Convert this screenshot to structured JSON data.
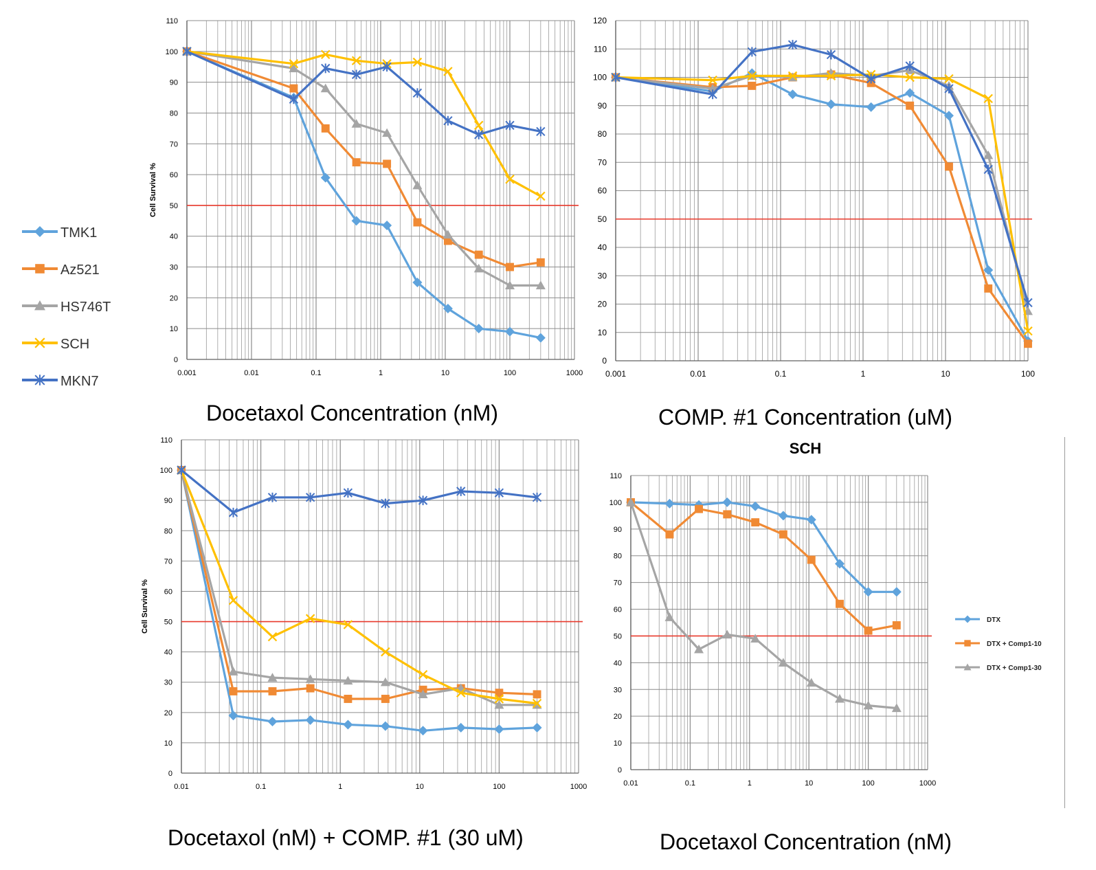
{
  "chart_data": [
    {
      "type": "line",
      "xscale": "log",
      "xlim": [
        0.001,
        1000
      ],
      "ylim": [
        0,
        110
      ],
      "ystep": 10,
      "xticks": [
        "0.001",
        "0.01",
        "0.1",
        "1",
        "10",
        "100",
        "1000"
      ],
      "ylabel": "Cell Survival %",
      "xlabel": "Docetaxol Concentration (nM)",
      "threshold": 50,
      "series": [
        {
          "name": "TMK1",
          "color": "#5fa3dc",
          "marker": "diamond",
          "x": [
            0.001,
            0.045,
            0.14,
            0.42,
            1.25,
            3.7,
            11,
            33,
            100,
            300
          ],
          "y": [
            100,
            85,
            59,
            45,
            43.5,
            25,
            16.5,
            10,
            9,
            7
          ]
        },
        {
          "name": "Az521",
          "color": "#f08a34",
          "marker": "square",
          "x": [
            0.001,
            0.045,
            0.14,
            0.42,
            1.25,
            3.7,
            11,
            33,
            100,
            300
          ],
          "y": [
            100,
            88,
            75,
            64,
            63.5,
            44.5,
            38.5,
            34,
            30,
            31.5
          ]
        },
        {
          "name": "HS746T",
          "color": "#a5a5a5",
          "marker": "triangle",
          "x": [
            0.001,
            0.045,
            0.14,
            0.42,
            1.25,
            3.7,
            11,
            33,
            100,
            300
          ],
          "y": [
            100,
            94.5,
            88,
            76.5,
            73.5,
            56.5,
            40.5,
            29.5,
            24,
            24
          ]
        },
        {
          "name": "SCH",
          "color": "#ffc000",
          "marker": "x",
          "x": [
            0.001,
            0.045,
            0.14,
            0.42,
            1.25,
            3.7,
            11,
            33,
            100,
            300
          ],
          "y": [
            100,
            96,
            99,
            97,
            96,
            96.5,
            93.5,
            76,
            58.5,
            53
          ]
        },
        {
          "name": "MKN7",
          "color": "#4472c4",
          "marker": "star",
          "x": [
            0.001,
            0.045,
            0.14,
            0.42,
            1.25,
            3.7,
            11,
            33,
            100,
            300
          ],
          "y": [
            100,
            84.5,
            94.5,
            92.5,
            95,
            86.5,
            77.5,
            73,
            76,
            74
          ]
        }
      ]
    },
    {
      "type": "line",
      "xscale": "log",
      "xlim": [
        0.001,
        100
      ],
      "ylim": [
        0,
        120
      ],
      "ystep": 10,
      "xticks": [
        "0.001",
        "0.01",
        "0.1",
        "1",
        "10",
        "100"
      ],
      "ylabel": "",
      "xlabel": "COMP. #1 Concentration (uM)",
      "threshold": 50,
      "series": [
        {
          "name": "TMK1",
          "color": "#5fa3dc",
          "marker": "diamond",
          "x": [
            0.001,
            0.015,
            0.045,
            0.14,
            0.41,
            1.25,
            3.7,
            11,
            33,
            100
          ],
          "y": [
            100,
            95,
            101.5,
            94,
            90.5,
            89.5,
            94.5,
            86.5,
            32,
            7
          ]
        },
        {
          "name": "Az521",
          "color": "#f08a34",
          "marker": "square",
          "x": [
            0.001,
            0.015,
            0.045,
            0.14,
            0.41,
            1.25,
            3.7,
            11,
            33,
            100
          ],
          "y": [
            100,
            96.5,
            97,
            100,
            101,
            98,
            90,
            68.5,
            25.5,
            6
          ]
        },
        {
          "name": "HS746T",
          "color": "#a5a5a5",
          "marker": "triangle",
          "x": [
            0.001,
            0.015,
            0.045,
            0.14,
            0.41,
            1.25,
            3.7,
            11,
            33,
            100
          ],
          "y": [
            100,
            96,
            100.5,
            100,
            101.5,
            100.5,
            102.5,
            97,
            72.5,
            17.5
          ]
        },
        {
          "name": "SCH",
          "color": "#ffc000",
          "marker": "x",
          "x": [
            0.001,
            0.015,
            0.045,
            0.14,
            0.41,
            1.25,
            3.7,
            11,
            33,
            100
          ],
          "y": [
            100,
            99,
            100.5,
            100.5,
            100.5,
            101,
            100,
            99.5,
            92.5,
            10.5
          ]
        },
        {
          "name": "MKN7",
          "color": "#4472c4",
          "marker": "star",
          "x": [
            0.001,
            0.015,
            0.045,
            0.14,
            0.41,
            1.25,
            3.7,
            11,
            33,
            100
          ],
          "y": [
            100,
            94,
            109,
            111.5,
            108,
            99.5,
            104,
            96,
            67.5,
            20.5
          ]
        }
      ]
    },
    {
      "type": "line",
      "xscale": "log",
      "xlim": [
        0.01,
        1000
      ],
      "ylim": [
        0,
        110
      ],
      "ystep": 10,
      "xticks": [
        "0.01",
        "0.1",
        "1",
        "10",
        "100",
        "1000"
      ],
      "ylabel": "Cell Survival %",
      "xlabel": "Docetaxol (nM) + COMP. #1 (30 uM)",
      "threshold": 50,
      "series": [
        {
          "name": "TMK1",
          "color": "#5fa3dc",
          "marker": "diamond",
          "x": [
            0.01,
            0.045,
            0.14,
            0.42,
            1.25,
            3.7,
            11,
            33,
            100,
            300
          ],
          "y": [
            100,
            19,
            17,
            17.5,
            16,
            15.5,
            14,
            15,
            14.5,
            15
          ]
        },
        {
          "name": "Az521",
          "color": "#f08a34",
          "marker": "square",
          "x": [
            0.01,
            0.045,
            0.14,
            0.42,
            1.25,
            3.7,
            11,
            33,
            100,
            300
          ],
          "y": [
            100,
            27,
            27,
            28,
            24.5,
            24.5,
            27.5,
            28,
            26.5,
            26
          ]
        },
        {
          "name": "HS746T",
          "color": "#a5a5a5",
          "marker": "triangle",
          "x": [
            0.01,
            0.045,
            0.14,
            0.42,
            1.25,
            3.7,
            11,
            33,
            100,
            300
          ],
          "y": [
            100,
            33.5,
            31.5,
            31,
            30.5,
            30,
            26,
            28,
            22.5,
            22.5
          ]
        },
        {
          "name": "SCH",
          "color": "#ffc000",
          "marker": "x",
          "x": [
            0.01,
            0.045,
            0.14,
            0.42,
            1.25,
            3.7,
            11,
            33,
            100,
            300
          ],
          "y": [
            100,
            57,
            45,
            51,
            49,
            40,
            32.5,
            26.5,
            24.5,
            23
          ]
        },
        {
          "name": "MKN7",
          "color": "#4472c4",
          "marker": "star",
          "x": [
            0.01,
            0.045,
            0.14,
            0.42,
            1.25,
            3.7,
            11,
            33,
            100,
            300
          ],
          "y": [
            100,
            86,
            91,
            91,
            92.5,
            89,
            90,
            93,
            92.5,
            91
          ]
        }
      ]
    },
    {
      "type": "line",
      "title": "SCH",
      "xscale": "log",
      "xlim": [
        0.01,
        1000
      ],
      "ylim": [
        0,
        110
      ],
      "ystep": 10,
      "xticks": [
        "0.01",
        "0.1",
        "1",
        "10",
        "100",
        "1000"
      ],
      "ylabel": "",
      "xlabel": "Docetaxol Concentration (nM)",
      "threshold": 50,
      "series": [
        {
          "name": "DTX",
          "color": "#5fa3dc",
          "marker": "diamond",
          "x": [
            0.01,
            0.045,
            0.14,
            0.42,
            1.25,
            3.7,
            11,
            33,
            100,
            300
          ],
          "y": [
            100,
            99.5,
            99,
            100,
            98.5,
            95,
            93.5,
            77,
            66.5,
            66.5
          ]
        },
        {
          "name": "DTX + Comp1-10",
          "color": "#f08a34",
          "marker": "square",
          "x": [
            0.01,
            0.045,
            0.14,
            0.42,
            1.25,
            3.7,
            11,
            33,
            100,
            300
          ],
          "y": [
            100,
            88,
            97.5,
            95.5,
            92.5,
            88,
            78.5,
            62,
            52,
            54
          ]
        },
        {
          "name": "DTX + Comp1-30",
          "color": "#a5a5a5",
          "marker": "triangle",
          "x": [
            0.01,
            0.045,
            0.14,
            0.42,
            1.25,
            3.7,
            11,
            33,
            100,
            300
          ],
          "y": [
            100,
            57,
            45,
            50.5,
            49,
            40,
            32.5,
            26.5,
            24,
            23
          ]
        }
      ]
    }
  ],
  "legend_main": [
    "TMK1",
    "Az521",
    "HS746T",
    "SCH",
    "MKN7"
  ],
  "legend_sch": [
    "DTX",
    "DTX + Comp1-10",
    "DTX + Comp1-30"
  ],
  "colors": {
    "threshold": "#e8392b",
    "grid": "#8c8c8c",
    "axis": "#606060"
  }
}
